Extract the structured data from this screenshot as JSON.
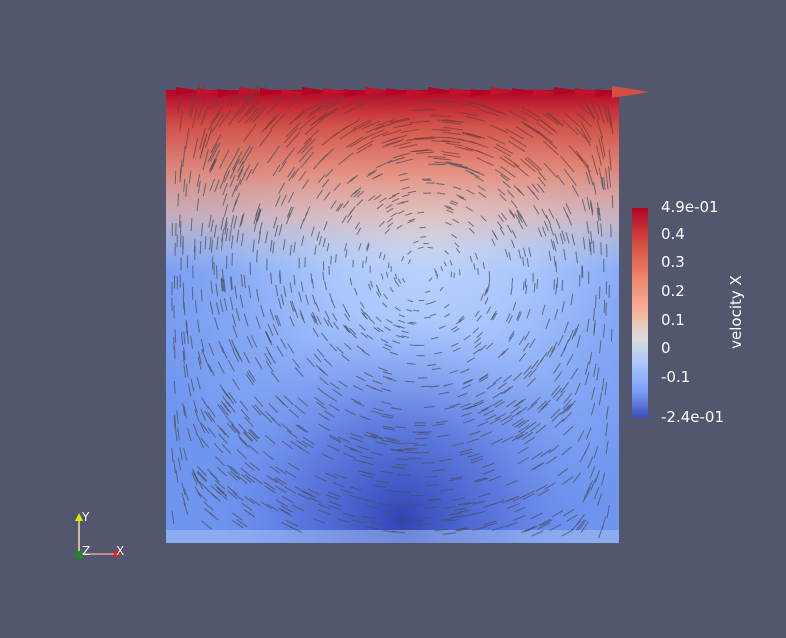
{
  "scalar_bar": {
    "title": "velocity X",
    "max_label": "4.9e-01",
    "min_label": "-2.4e-01",
    "ticks": [
      "0.4",
      "0.3",
      "0.2",
      "0.1",
      "0",
      "-0.1"
    ],
    "colormap": "cool-to-warm",
    "range": [
      -0.24,
      0.49
    ]
  },
  "axes": {
    "y": "Y",
    "z": "Z",
    "x": "X"
  },
  "colors": {
    "background": "#52576e",
    "high": "#b40426",
    "mid": "#dcdddd",
    "low": "#3b4cc0",
    "glyph": "#4a4f5e"
  }
}
